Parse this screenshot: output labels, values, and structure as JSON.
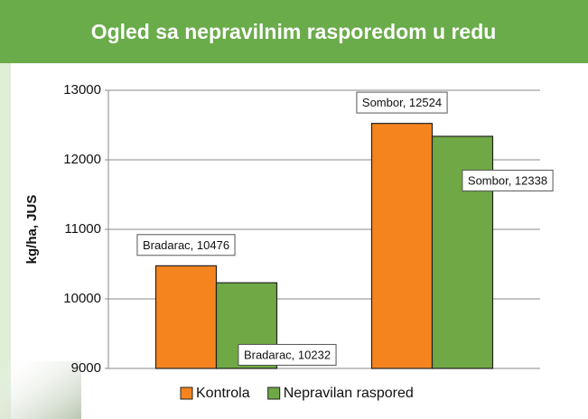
{
  "chart_data": {
    "type": "bar",
    "title": "Ogled sa nepravilnim rasporedom u redu",
    "y_label": "kg/ha, JUS",
    "categories": [
      null,
      null
    ],
    "series": [
      {
        "name": "Kontrola",
        "color": "#f5841f",
        "values": [
          10476,
          12524
        ],
        "value_labels": [
          "Bradarac, 10476",
          "Sombor, 12524"
        ]
      },
      {
        "name": "Nepravilan raspored",
        "color": "#6fa845",
        "values": [
          10232,
          12338
        ],
        "value_labels": [
          "Bradarac, 10232",
          "Sombor, 12338"
        ]
      }
    ],
    "ylim": [
      9000,
      13000
    ],
    "yticks": [
      9000,
      10000,
      11000,
      12000,
      13000
    ],
    "grid": true,
    "legend": "bottom"
  }
}
